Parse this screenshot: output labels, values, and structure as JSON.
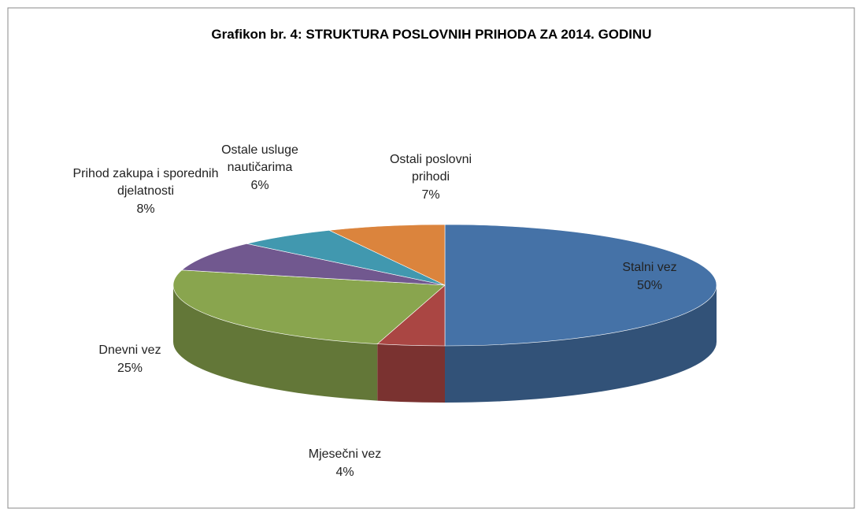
{
  "chart_data": {
    "type": "pie",
    "title": "Grafikon br. 4: STRUKTURA POSLOVNIH PRIHODA ZA 2014. GODINU",
    "categories": [
      "Stalni vez",
      "Mjesečni vez",
      "Dnevni vez",
      "Prihod zakupa i sporednih djelatnosti",
      "Ostale usluge nautičarima",
      "Ostali poslovni prihodi"
    ],
    "values": [
      50,
      4,
      25,
      8,
      6,
      7
    ],
    "value_labels": [
      "50%",
      "4%",
      "25%",
      "8%",
      "6%",
      "7%"
    ],
    "colors": [
      "#4572a7",
      "#aa4643",
      "#89a54e",
      "#71588f",
      "#4198af",
      "#db843d"
    ]
  }
}
